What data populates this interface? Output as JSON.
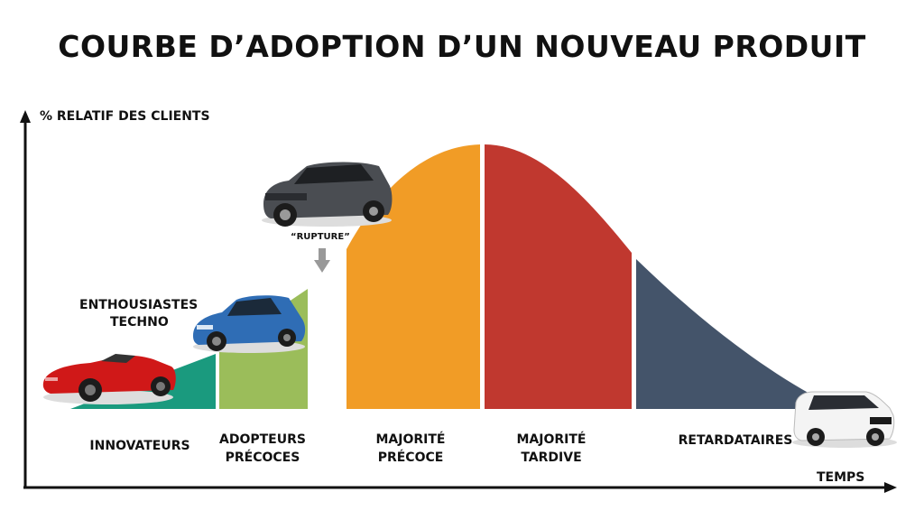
{
  "title": "COURBE D’ADOPTION D’UN NOUVEAU PRODUIT",
  "axes": {
    "y_label": "% RELATIF DES CLIENTS",
    "x_label": "TEMPS"
  },
  "segments": [
    {
      "label_line1": "INNOVATEURS",
      "label_line2": "",
      "color": "#1a9a7e"
    },
    {
      "label_line1": "ADOPTEURS",
      "label_line2": "PRÉCOCES",
      "color": "#9bbd5a"
    },
    {
      "label_line1": "MAJORITÉ",
      "label_line2": "PRÉCOCE",
      "color": "#f19c26"
    },
    {
      "label_line1": "MAJORITÉ",
      "label_line2": "TARDIVE",
      "color": "#c0382f"
    },
    {
      "label_line1": "RETARDATAIRES",
      "label_line2": "",
      "color": "#44546a"
    }
  ],
  "annotations": {
    "enthusiasts_line1": "ENTHOUSIASTES",
    "enthusiasts_line2": "TECHNO",
    "chasm": "“RUPTURE”"
  },
  "images": [
    "red-roadster-car",
    "blue-hatchback-car",
    "grey-crossover-suv",
    "white-large-suv"
  ]
}
